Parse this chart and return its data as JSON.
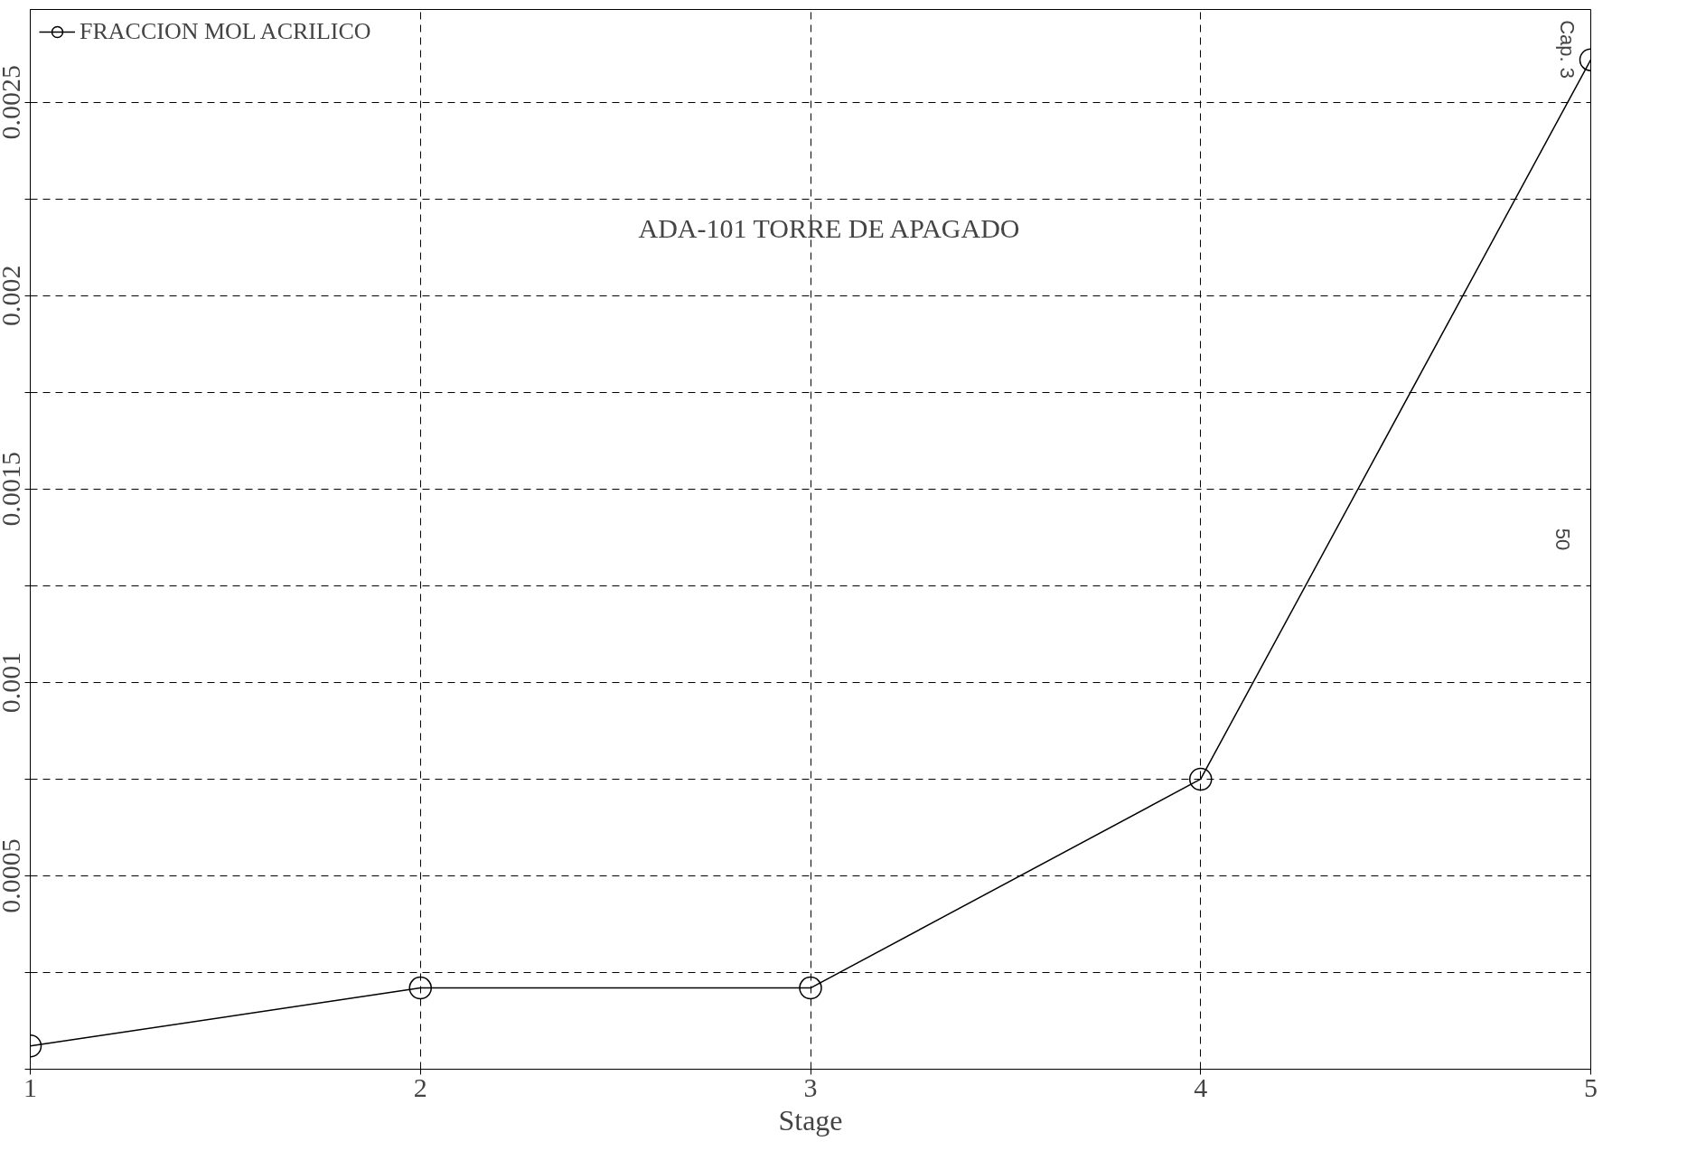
{
  "chart_data": {
    "type": "line",
    "xlabel": "Stage",
    "x": [
      1,
      2,
      3,
      4,
      5
    ],
    "series": [
      {
        "name": "FRACCION MOL ACRILICO",
        "color": "#000000",
        "values": [
          6e-05,
          0.00021,
          0.00021,
          0.00075,
          0.00261
        ]
      }
    ],
    "xlim": [
      1,
      5
    ],
    "xticks": [
      1,
      2,
      3,
      4,
      5
    ],
    "ylim": [
      0,
      0.00274
    ],
    "yticks": [
      {
        "value": 0,
        "label": null
      },
      {
        "value": 0.00025,
        "label": null
      },
      0.0005,
      {
        "value": 0.00075,
        "label": null
      },
      0.001,
      {
        "value": 0.00125,
        "label": null
      },
      0.0015,
      {
        "value": 0.00175,
        "label": null
      },
      0.002,
      {
        "value": 0.00225,
        "label": null
      },
      0.0025
    ],
    "grid": true,
    "line_style": "solid",
    "marker": "circle",
    "legend": "top left",
    "annotations": [
      "ADA-101 TORRE DE APAGADO",
      "Cap. 3",
      "50"
    ]
  }
}
